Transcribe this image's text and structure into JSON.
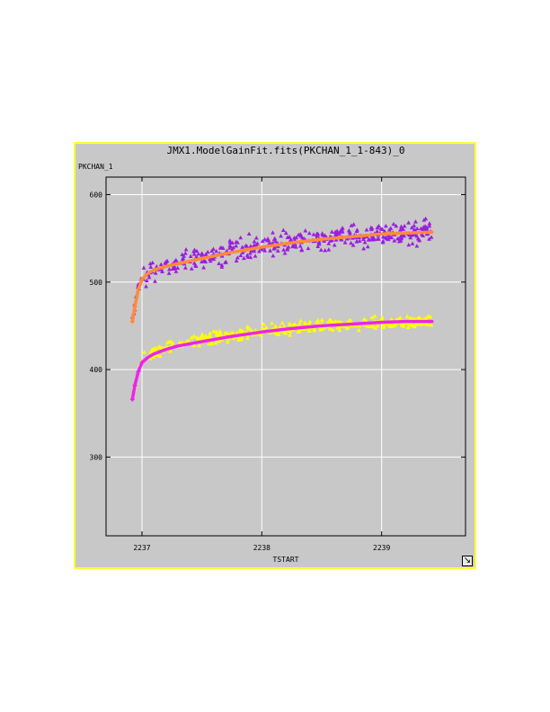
{
  "window": {
    "title": "JMX1.ModelGainFit.fits(PKCHAN_1_1-843)_0"
  },
  "colors": {
    "window_border": "#ffff33",
    "background": "#c8c8c8",
    "grid": "#ffffff",
    "series_upper_points": "#9b1ee0",
    "series_upper_fit": "#ff8a3a",
    "series_lower_points": "#ffff00",
    "series_lower_fit": "#ee22ee"
  },
  "icons": {
    "resize_handle": "resize-corner-icon"
  },
  "chart_data": {
    "type": "scatter",
    "title": "JMX1.ModelGainFit.fits(PKCHAN_1_1-843)_0",
    "xlabel": "TSTART",
    "ylabel": "PKCHAN_1",
    "xlim": [
      2236.7,
      2239.7
    ],
    "ylim": [
      210,
      620
    ],
    "x_ticks": [
      2237,
      2238,
      2239
    ],
    "y_ticks": [
      300,
      400,
      500,
      600
    ],
    "grid": true,
    "legend": "none",
    "series": [
      {
        "kind": "points",
        "marker": "triangle",
        "color": "#9b1ee0",
        "x_range": [
          2236.92,
          2239.42
        ],
        "trend": [
          [
            2236.92,
            458
          ],
          [
            2236.96,
            490
          ],
          [
            2237.0,
            505
          ],
          [
            2237.1,
            515
          ],
          [
            2237.3,
            522
          ],
          [
            2237.6,
            530
          ],
          [
            2238.0,
            541
          ],
          [
            2238.5,
            550
          ],
          [
            2239.0,
            556
          ],
          [
            2239.42,
            558
          ]
        ],
        "spread": 22,
        "count": 420
      },
      {
        "kind": "fit",
        "color": "#ff8a3a",
        "points": [
          [
            2236.92,
            455
          ],
          [
            2236.94,
            472
          ],
          [
            2236.97,
            492
          ],
          [
            2237.0,
            503
          ],
          [
            2237.05,
            510
          ],
          [
            2237.1,
            514
          ],
          [
            2237.2,
            518
          ],
          [
            2237.3,
            521
          ],
          [
            2237.5,
            527
          ],
          [
            2237.75,
            534
          ],
          [
            2238.0,
            540
          ],
          [
            2238.25,
            545
          ],
          [
            2238.5,
            549
          ],
          [
            2238.75,
            552
          ],
          [
            2239.0,
            555
          ],
          [
            2239.2,
            556
          ],
          [
            2239.42,
            557
          ]
        ]
      },
      {
        "kind": "points",
        "marker": "triangle",
        "color": "#ffff00",
        "x_range": [
          2236.92,
          2239.42
        ],
        "trend": [
          [
            2236.92,
            372
          ],
          [
            2236.96,
            395
          ],
          [
            2237.0,
            410
          ],
          [
            2237.1,
            420
          ],
          [
            2237.3,
            428
          ],
          [
            2237.6,
            436
          ],
          [
            2238.0,
            444
          ],
          [
            2238.5,
            450
          ],
          [
            2239.0,
            454
          ],
          [
            2239.42,
            455
          ]
        ],
        "spread": 11,
        "count": 420
      },
      {
        "kind": "fit",
        "color": "#ee22ee",
        "points": [
          [
            2236.92,
            366
          ],
          [
            2236.94,
            382
          ],
          [
            2236.97,
            398
          ],
          [
            2237.0,
            408
          ],
          [
            2237.05,
            414
          ],
          [
            2237.1,
            418
          ],
          [
            2237.2,
            423
          ],
          [
            2237.3,
            427
          ],
          [
            2237.5,
            432
          ],
          [
            2237.75,
            438
          ],
          [
            2238.0,
            443
          ],
          [
            2238.25,
            447
          ],
          [
            2238.5,
            450
          ],
          [
            2238.75,
            452
          ],
          [
            2239.0,
            454
          ],
          [
            2239.2,
            455
          ],
          [
            2239.42,
            455
          ]
        ]
      }
    ]
  }
}
